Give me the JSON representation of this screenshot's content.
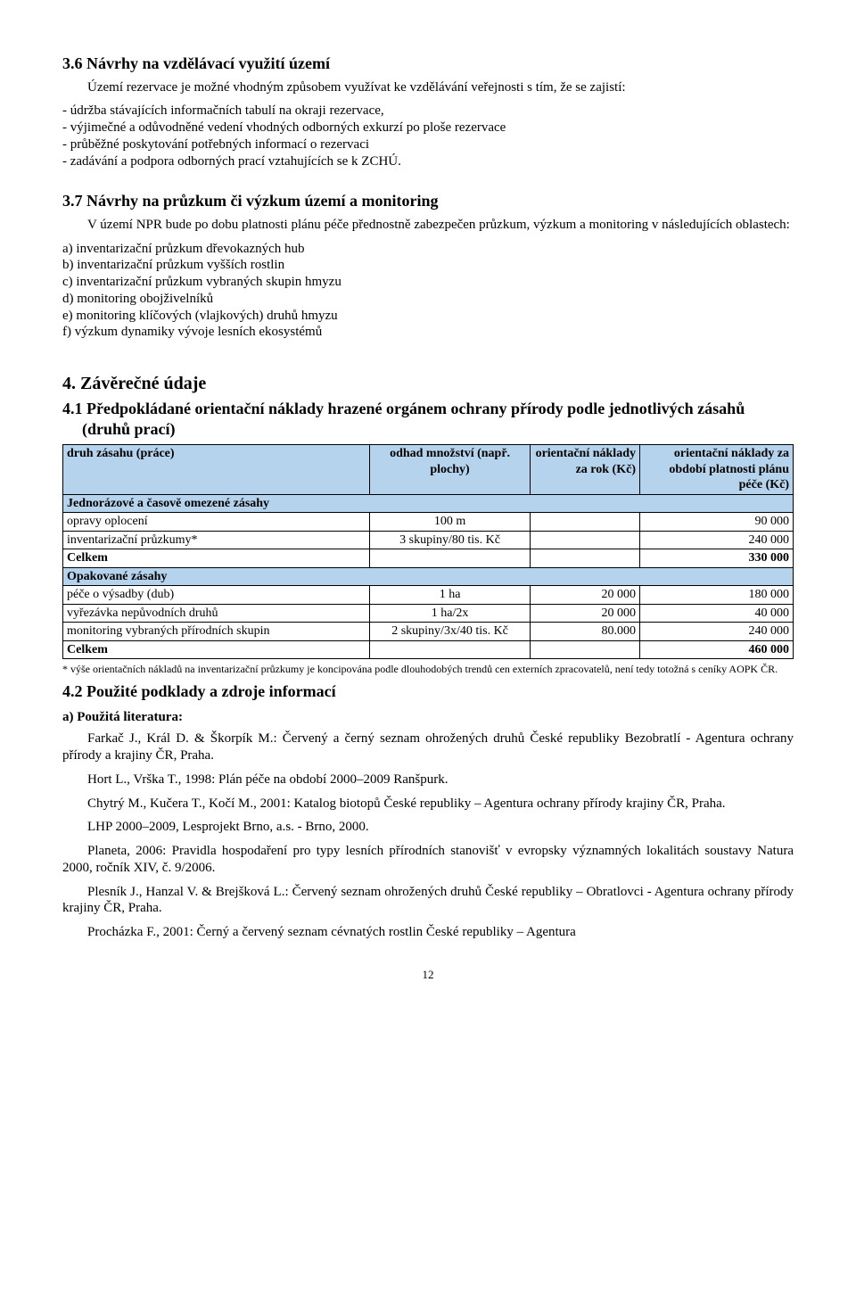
{
  "s36": {
    "heading": "3.6 Návrhy na vzdělávací využití území",
    "p1": "Území rezervace je možné vhodným způsobem využívat ke vzdělávání veřejnosti s tím, že se zajistí:",
    "l1": "- údržba stávajících informačních tabulí na okraji rezervace,",
    "l2": "- výjimečné a odůvodněné vedení vhodných odborných exkurzí po ploše rezervace",
    "l3": "- průběžné poskytování potřebných informací o rezervaci",
    "l4": "- zadávání a podpora odborných prací vztahujících se k ZCHÚ."
  },
  "s37": {
    "heading": "3.7 Návrhy na průzkum či výzkum území a monitoring",
    "p1": "V území NPR bude po dobu platnosti plánu péče přednostně zabezpečen průzkum, výzkum a monitoring v následujících oblastech:",
    "la": "a) inventarizační průzkum dřevokazných hub",
    "lb": "b) inventarizační průzkum vyšších rostlin",
    "lc": "c) inventarizační průzkum vybraných skupin hmyzu",
    "ld": "d) monitoring obojživelníků",
    "le": "e) monitoring klíčových (vlajkových) druhů hmyzu",
    "lf": "f) výzkum dynamiky vývoje lesních ekosystémů"
  },
  "s4": {
    "heading": "4. Závěrečné údaje",
    "sub41": "4.1 Předpokládané orientační náklady hrazené orgánem ochrany přírody podle jednotlivých zásahů (druhů prací)"
  },
  "table": {
    "headers": {
      "c1": "druh zásahu (práce)",
      "c2": "odhad množství (např. plochy)",
      "c3": "orientační náklady za rok (Kč)",
      "c4": "orientační náklady za období platnosti plánu péče (Kč)"
    },
    "group1": "Jednorázové a časově omezené zásahy",
    "r1": {
      "c1": "opravy oplocení",
      "c2": "100 m",
      "c3": "",
      "c4": "90 000"
    },
    "r2": {
      "c1": "inventarizační průzkumy*",
      "c2": "3 skupiny/80 tis. Kč",
      "c3": "",
      "c4": "240 000"
    },
    "r3": {
      "c1": "Celkem",
      "c2": "",
      "c3": "",
      "c4": "330 000"
    },
    "group2": "Opakované zásahy",
    "r4": {
      "c1": "péče o výsadby (dub)",
      "c2": "1 ha",
      "c3": "20 000",
      "c4": "180 000"
    },
    "r5": {
      "c1": "vyřezávka nepůvodních druhů",
      "c2": "1 ha/2x",
      "c3": "20 000",
      "c4": "40 000"
    },
    "r6": {
      "c1": "monitoring vybraných přírodních skupin",
      "c2": "2 skupiny/3x/40 tis. Kč",
      "c3": "80.000",
      "c4": "240 000"
    },
    "r7": {
      "c1": "Celkem",
      "c2": "",
      "c3": "",
      "c4": "460 000"
    },
    "header_bg": "#b6d3ed",
    "border_color": "#000000"
  },
  "footnote": "* výše orientačních nákladů na inventarizační průzkumy je koncipována podle dlouhodobých trendů cen externích zpracovatelů, není tedy totožná s ceníky AOPK ČR.",
  "s42": {
    "heading": "4.2 Použité podklady a zdroje informací",
    "sub": "a) Použitá literatura:",
    "p1": "Farkač J., Král D. & Škorpík M.: Červený a černý seznam ohrožených druhů České republiky Bezobratlí - Agentura ochrany přírody a krajiny ČR, Praha.",
    "p2": "Hort L., Vrška T., 1998: Plán péče na období 2000–2009 Ranšpurk.",
    "p3": "Chytrý M., Kučera T., Kočí M., 2001: Katalog biotopů České republiky – Agentura ochrany přírody krajiny ČR, Praha.",
    "p4": "LHP 2000–2009, Lesprojekt Brno, a.s. - Brno, 2000.",
    "p5": "Planeta, 2006: Pravidla hospodaření pro typy lesních přírodních stanovišť v evropsky významných lokalitách soustavy Natura 2000, ročník XIV, č. 9/2006.",
    "p6": "Plesník J., Hanzal V. & Brejšková L.: Červený seznam ohrožených druhů České republiky – Obratlovci - Agentura ochrany přírody krajiny ČR, Praha.",
    "p7": "Procházka F., 2001: Černý a červený seznam cévnatých rostlin České republiky – Agentura"
  },
  "pagenum": "12"
}
